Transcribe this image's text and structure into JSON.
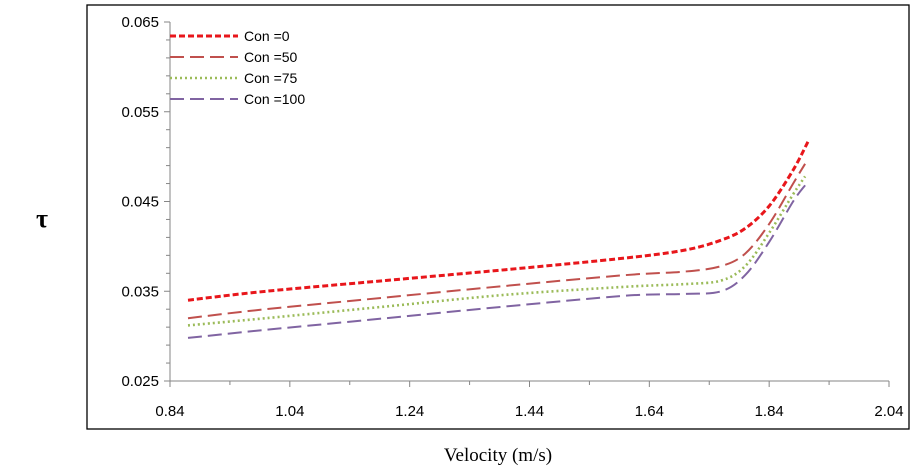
{
  "chart_data": {
    "type": "line",
    "xlabel": "Velocity (m/s)",
    "ylabel": "τ",
    "xlim": [
      0.84,
      2.04
    ],
    "ylim": [
      0.025,
      0.065
    ],
    "x_ticks": [
      "0.84",
      "1.04",
      "1.24",
      "1.44",
      "1.64",
      "1.84",
      "2.04"
    ],
    "y_ticks": [
      "0.025",
      "0.035",
      "0.045",
      "0.055",
      "0.065"
    ],
    "grid": false,
    "legend_position": "top-left",
    "series": [
      {
        "name": "Con =0",
        "color": "#e8161b",
        "style": "short-dash",
        "x": [
          0.87,
          1.0,
          1.2,
          1.4,
          1.6,
          1.7,
          1.76,
          1.8,
          1.84,
          1.88,
          1.905
        ],
        "y": [
          0.034,
          0.035,
          0.0362,
          0.0374,
          0.0387,
          0.0396,
          0.0407,
          0.042,
          0.0445,
          0.0485,
          0.0517
        ]
      },
      {
        "name": "Con =50",
        "color": "#c0504d",
        "style": "long-dash",
        "x": [
          0.87,
          1.0,
          1.2,
          1.4,
          1.6,
          1.7,
          1.76,
          1.8,
          1.84,
          1.88,
          1.9
        ],
        "y": [
          0.032,
          0.033,
          0.0343,
          0.0356,
          0.0368,
          0.0372,
          0.0378,
          0.0392,
          0.0425,
          0.047,
          0.0492
        ]
      },
      {
        "name": "Con =75",
        "color": "#9bbb59",
        "style": "dotted",
        "x": [
          0.87,
          1.0,
          1.2,
          1.4,
          1.6,
          1.7,
          1.76,
          1.8,
          1.84,
          1.88,
          1.9
        ],
        "y": [
          0.0312,
          0.032,
          0.0333,
          0.0346,
          0.0355,
          0.0358,
          0.0362,
          0.0378,
          0.0415,
          0.0458,
          0.0478
        ]
      },
      {
        "name": "Con =100",
        "color": "#8064a2",
        "style": "long-dash",
        "x": [
          0.87,
          1.0,
          1.2,
          1.4,
          1.6,
          1.7,
          1.76,
          1.8,
          1.84,
          1.88,
          1.9
        ],
        "y": [
          0.0298,
          0.0307,
          0.032,
          0.0333,
          0.0345,
          0.0347,
          0.035,
          0.0368,
          0.0405,
          0.045,
          0.0468
        ]
      }
    ]
  }
}
